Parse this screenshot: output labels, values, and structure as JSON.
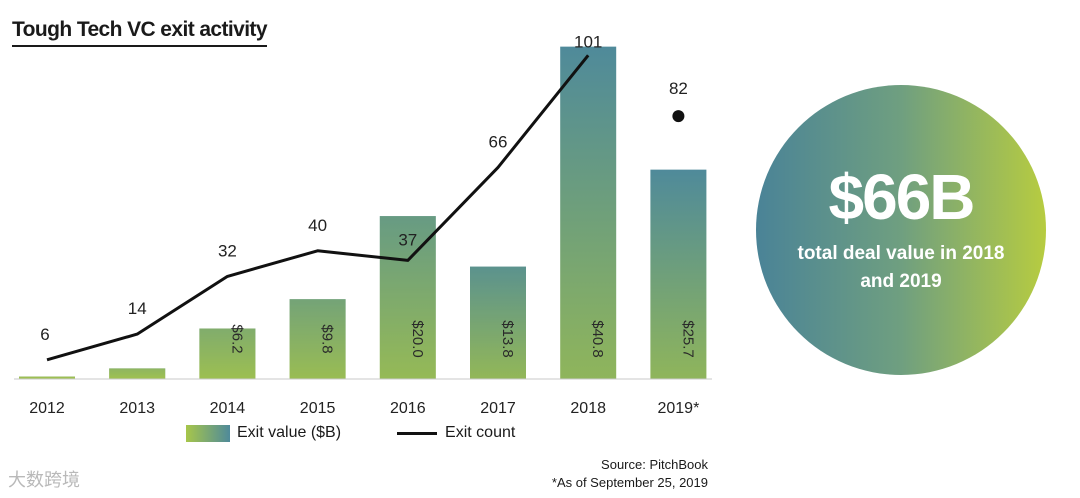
{
  "title": "Tough Tech VC exit activity",
  "chart_data": {
    "type": "bar",
    "title": "Tough Tech VC exit activity",
    "categories": [
      "2012",
      "2013",
      "2014",
      "2015",
      "2016",
      "2017",
      "2018",
      "2019*"
    ],
    "series": [
      {
        "name": "Exit value ($B)",
        "type": "bar",
        "values": [
          0.3,
          1.3,
          6.2,
          9.8,
          20.0,
          13.8,
          40.8,
          25.7
        ],
        "labels": [
          "",
          "",
          "$6.2",
          "$9.8",
          "$20.0",
          "$13.8",
          "$40.8",
          "$25.7"
        ]
      },
      {
        "name": "Exit count",
        "type": "line",
        "values": [
          6,
          14,
          32,
          40,
          37,
          66,
          101,
          82
        ],
        "line_through": 7,
        "marker_only_index": 7
      }
    ],
    "ylim_value": [
      0,
      41
    ],
    "ylim_count": [
      0,
      112
    ],
    "legend": [
      "Exit value ($B)",
      "Exit count"
    ],
    "legend_position": "bottom"
  },
  "legend": {
    "bar_label": "Exit value ($B)",
    "line_label": "Exit count"
  },
  "source": {
    "line1": "Source: PitchBook",
    "line2": "*As of September 25, 2019"
  },
  "callout": {
    "value": "$66B",
    "caption": "total deal value in 2018 and 2019"
  },
  "watermark": "大数跨境",
  "colors": {
    "bar_light": "#a7c64a",
    "bar_dark": "#4f8a9a",
    "line": "#111111"
  }
}
